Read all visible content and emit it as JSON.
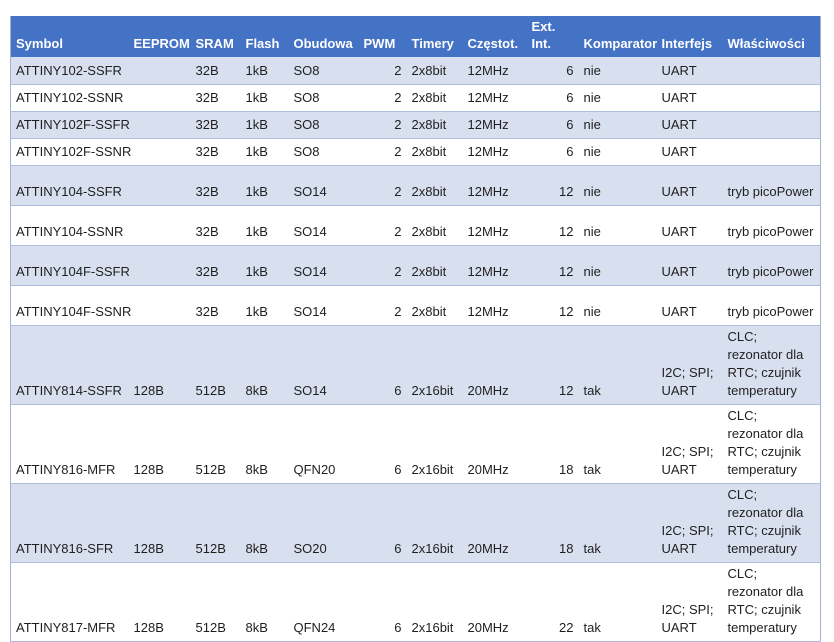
{
  "table": {
    "columns": [
      {
        "key": "symbol",
        "label": "Symbol",
        "align": "left"
      },
      {
        "key": "eeprom",
        "label": "EEPROM",
        "align": "left"
      },
      {
        "key": "sram",
        "label": "SRAM",
        "align": "left"
      },
      {
        "key": "flash",
        "label": "Flash",
        "align": "left"
      },
      {
        "key": "obudowa",
        "label": "Obudowa",
        "align": "left"
      },
      {
        "key": "pwm",
        "label": "PWM",
        "align": "right"
      },
      {
        "key": "timery",
        "label": "Timery",
        "align": "left"
      },
      {
        "key": "czestot",
        "label": "Częstot.",
        "align": "left"
      },
      {
        "key": "ext-int",
        "label": "Ext. Int.",
        "align": "right"
      },
      {
        "key": "komparator",
        "label": "Komparator",
        "align": "left"
      },
      {
        "key": "interfejs",
        "label": "Interfejs",
        "align": "left"
      },
      {
        "key": "wlasciwosci",
        "label": "Właściwości",
        "align": "left"
      }
    ],
    "rows": [
      [
        "ATTINY102-SSFR",
        "",
        "32B",
        "1kB",
        "SO8",
        "2",
        "2x8bit",
        "12MHz",
        "6",
        "nie",
        "UART",
        ""
      ],
      [
        "ATTINY102-SSNR",
        "",
        "32B",
        "1kB",
        "SO8",
        "2",
        "2x8bit",
        "12MHz",
        "6",
        "nie",
        "UART",
        ""
      ],
      [
        "ATTINY102F-SSFR",
        "",
        "32B",
        "1kB",
        "SO8",
        "2",
        "2x8bit",
        "12MHz",
        "6",
        "nie",
        "UART",
        ""
      ],
      [
        "ATTINY102F-SSNR",
        "",
        "32B",
        "1kB",
        "SO8",
        "2",
        "2x8bit",
        "12MHz",
        "6",
        "nie",
        "UART",
        ""
      ],
      [
        "ATTINY104-SSFR",
        "",
        "32B",
        "1kB",
        "SO14",
        "2",
        "2x8bit",
        "12MHz",
        "12",
        "nie",
        "UART",
        "tryb picoPower"
      ],
      [
        "ATTINY104-SSNR",
        "",
        "32B",
        "1kB",
        "SO14",
        "2",
        "2x8bit",
        "12MHz",
        "12",
        "nie",
        "UART",
        "tryb picoPower"
      ],
      [
        "ATTINY104F-SSFR",
        "",
        "32B",
        "1kB",
        "SO14",
        "2",
        "2x8bit",
        "12MHz",
        "12",
        "nie",
        "UART",
        "tryb picoPower"
      ],
      [
        "ATTINY104F-SSNR",
        "",
        "32B",
        "1kB",
        "SO14",
        "2",
        "2x8bit",
        "12MHz",
        "12",
        "nie",
        "UART",
        "tryb picoPower"
      ],
      [
        "ATTINY814-SSFR",
        "128B",
        "512B",
        "8kB",
        "SO14",
        "6",
        "2x16bit",
        "20MHz",
        "12",
        "tak",
        "I2C; SPI; UART",
        "CLC; rezonator dla RTC; czujnik temperatury"
      ],
      [
        "ATTINY816-MFR",
        "128B",
        "512B",
        "8kB",
        "QFN20",
        "6",
        "2x16bit",
        "20MHz",
        "18",
        "tak",
        "I2C; SPI; UART",
        "CLC; rezonator dla RTC; czujnik temperatury"
      ],
      [
        "ATTINY816-SFR",
        "128B",
        "512B",
        "8kB",
        "SO20",
        "6",
        "2x16bit",
        "20MHz",
        "18",
        "tak",
        "I2C; SPI; UART",
        "CLC; rezonator dla RTC; czujnik temperatury"
      ],
      [
        "ATTINY817-MFR",
        "128B",
        "512B",
        "8kB",
        "QFN24",
        "6",
        "2x16bit",
        "20MHz",
        "22",
        "tak",
        "I2C; SPI; UART",
        "CLC; rezonator dla RTC; czujnik temperatury"
      ]
    ]
  },
  "colors": {
    "header_bg": "#4472C4",
    "header_text": "#FFFFFF",
    "band_bg": "#D8DFEF",
    "row_bg": "#FFFFFF",
    "row_border": "#AFBDDA",
    "outer_border": "#9FB0D0",
    "body_text": "#1F1F1F"
  }
}
